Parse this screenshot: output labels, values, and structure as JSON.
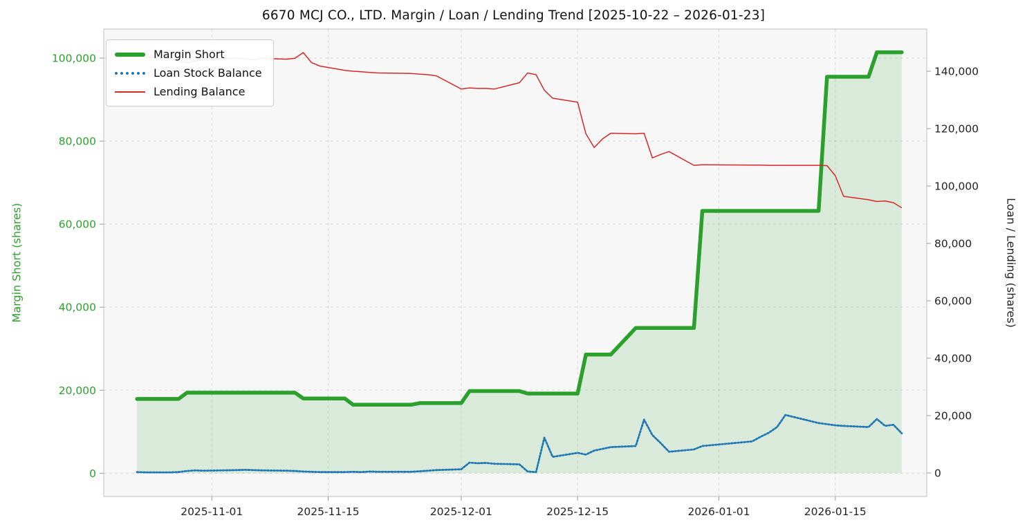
{
  "chart_data": {
    "type": "line",
    "title": "6670 MCJ CO., LTD. Margin / Loan / Lending Trend [2025-10-22 – 2026-01-23]",
    "x": [
      "2025-10-23",
      "2025-10-24",
      "2025-10-27",
      "2025-10-28",
      "2025-10-29",
      "2025-10-30",
      "2025-10-31",
      "2025-11-04",
      "2025-11-05",
      "2025-11-06",
      "2025-11-07",
      "2025-11-10",
      "2025-11-11",
      "2025-11-12",
      "2025-11-13",
      "2025-11-14",
      "2025-11-17",
      "2025-11-18",
      "2025-11-19",
      "2025-11-20",
      "2025-11-21",
      "2025-11-25",
      "2025-11-26",
      "2025-11-27",
      "2025-11-28",
      "2025-12-01",
      "2025-12-02",
      "2025-12-03",
      "2025-12-04",
      "2025-12-05",
      "2025-12-08",
      "2025-12-09",
      "2025-12-10",
      "2025-12-11",
      "2025-12-12",
      "2025-12-15",
      "2025-12-16",
      "2025-12-17",
      "2025-12-18",
      "2025-12-19",
      "2025-12-22",
      "2025-12-23",
      "2025-12-24",
      "2025-12-25",
      "2025-12-26",
      "2025-12-29",
      "2025-12-30",
      "2026-01-05",
      "2026-01-06",
      "2026-01-07",
      "2026-01-08",
      "2026-01-09",
      "2026-01-13",
      "2026-01-14",
      "2026-01-15",
      "2026-01-16",
      "2026-01-19",
      "2026-01-20",
      "2026-01-21",
      "2026-01-22",
      "2026-01-23"
    ],
    "series": [
      {
        "name": "Margin Short",
        "axis": "left",
        "color": "#2ca02c",
        "width": 5.5,
        "fill": true,
        "values": [
          17900,
          17900,
          17900,
          17900,
          19400,
          19400,
          19400,
          19400,
          19400,
          19400,
          19400,
          19400,
          19400,
          18000,
          18000,
          18000,
          18000,
          16500,
          16500,
          16500,
          16500,
          16500,
          16900,
          16900,
          16900,
          16900,
          19800,
          19800,
          19800,
          19800,
          19800,
          19200,
          19200,
          19200,
          19200,
          19200,
          28600,
          28600,
          28600,
          28600,
          35000,
          35000,
          35000,
          35000,
          35000,
          35000,
          63200,
          63200,
          63200,
          63200,
          63200,
          63200,
          63200,
          95500,
          95500,
          95500,
          95500,
          101400,
          101400,
          101400,
          101400
        ]
      },
      {
        "name": "Loan Stock Balance",
        "axis": "right",
        "color": "#1f77b4",
        "width": 2.8,
        "dash": "2 2.6",
        "values": [
          300,
          200,
          200,
          300,
          700,
          900,
          800,
          1000,
          1100,
          1000,
          900,
          800,
          700,
          500,
          400,
          300,
          300,
          400,
          300,
          500,
          400,
          400,
          600,
          800,
          1000,
          1300,
          3600,
          3400,
          3500,
          3200,
          3000,
          500,
          300,
          12300,
          5600,
          7000,
          6400,
          7800,
          8400,
          9000,
          9400,
          18600,
          13200,
          10400,
          7400,
          8200,
          9400,
          11000,
          12600,
          14000,
          16000,
          20200,
          17400,
          17000,
          16600,
          16400,
          16000,
          18800,
          16400,
          16800,
          13800
        ]
      },
      {
        "name": "Lending Balance",
        "axis": "right",
        "color": "#d62728",
        "width": 1.5,
        "values": [
          145500,
          145000,
          144500,
          143500,
          143000,
          143500,
          144200,
          144500,
          144300,
          144000,
          144500,
          144200,
          144500,
          146500,
          143000,
          141800,
          140300,
          140000,
          139800,
          139600,
          139400,
          139200,
          139000,
          138800,
          138400,
          133800,
          134200,
          134000,
          134000,
          133800,
          136000,
          139400,
          138800,
          133400,
          130600,
          129200,
          118200,
          113400,
          116400,
          118400,
          118200,
          118400,
          109800,
          111000,
          112000,
          107200,
          107400,
          107300,
          107300,
          107200,
          107200,
          107200,
          107200,
          107100,
          103600,
          96400,
          95200,
          94600,
          94800,
          94200,
          92400
        ]
      }
    ],
    "left_axis": {
      "label": "Margin Short (shares)",
      "color": "#2ca02c",
      "ticks": [
        0,
        20000,
        40000,
        60000,
        80000,
        100000
      ],
      "range": [
        -5600,
        107000
      ]
    },
    "right_axis": {
      "label": "Loan / Lending (shares)",
      "color": "#222222",
      "ticks": [
        0,
        20000,
        40000,
        60000,
        80000,
        100000,
        120000,
        140000
      ],
      "range": [
        -8200,
        154700
      ]
    },
    "x_axis": {
      "ticks": [
        "2025-11-01",
        "2025-11-15",
        "2025-12-01",
        "2025-12-15",
        "2026-01-01",
        "2026-01-15"
      ],
      "range": [
        "2025-10-19",
        "2026-01-26"
      ],
      "grid": true
    },
    "plot_bg": "#f7f7f8",
    "grid_color": "#d6d6d6",
    "legend_position": "top-left"
  }
}
